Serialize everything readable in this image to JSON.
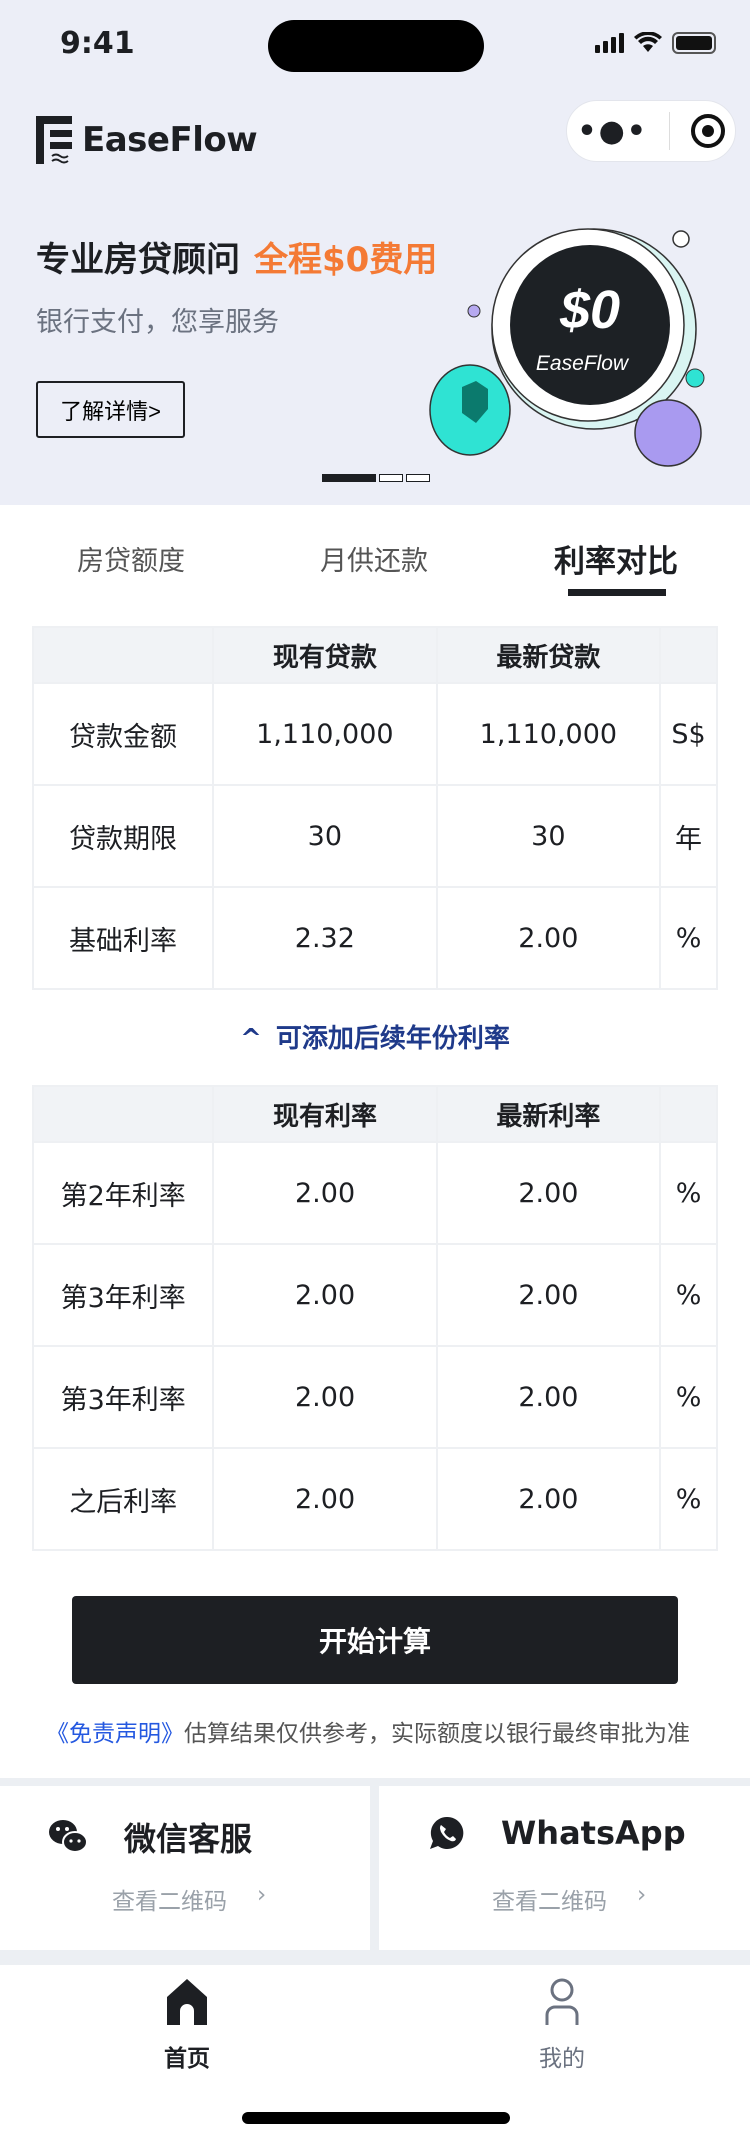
{
  "status_bar": {
    "time": "9:41"
  },
  "header": {
    "logo": "EaseFlow"
  },
  "banner": {
    "headline": "专业房贷顾问",
    "highlight": "全程$0费用",
    "subtitle": "银行支付，您享服务",
    "button": "了解详情>",
    "coin_amount": "$0",
    "coin_brand": "EaseFlow",
    "colors": {
      "highlight": "#f47a35",
      "coin_teal": "#2fe3d3",
      "coin_purple": "#a99af0"
    }
  },
  "tabs": [
    {
      "label": "房贷额度"
    },
    {
      "label": "月供还款"
    },
    {
      "label": "利率对比",
      "active": true
    }
  ],
  "loan_table": {
    "headers": [
      "",
      "现有贷款",
      "最新贷款",
      ""
    ],
    "rows": [
      [
        "贷款金额",
        "1,110,000",
        "1,110,000",
        "S$"
      ],
      [
        "贷款期限",
        "30",
        "30",
        "年"
      ],
      [
        "基础利率",
        "2.32",
        "2.00",
        "%"
      ]
    ]
  },
  "add_years_link": "可添加后续年份利率",
  "rate_table": {
    "headers": [
      "",
      "现有利率",
      "最新利率",
      ""
    ],
    "rows": [
      [
        "第2年利率",
        "2.00",
        "2.00",
        "%"
      ],
      [
        "第3年利率",
        "2.00",
        "2.00",
        "%"
      ],
      [
        "第3年利率",
        "2.00",
        "2.00",
        "%"
      ],
      [
        "之后利率",
        "2.00",
        "2.00",
        "%"
      ]
    ]
  },
  "calc_button": "开始计算",
  "disclaimer": {
    "link": "《免责声明》",
    "text": "估算结果仅供参考，实际额度以银行最终审批为准"
  },
  "contact": [
    {
      "title": "微信客服",
      "sub": "查看二维码",
      "icon": "wechat-icon"
    },
    {
      "title": "WhatsApp",
      "sub": "查看二维码",
      "icon": "whatsapp-icon"
    }
  ],
  "tabbar": [
    {
      "label": "首页",
      "icon": "home-icon",
      "active": true
    },
    {
      "label": "我的",
      "icon": "user-icon"
    }
  ]
}
